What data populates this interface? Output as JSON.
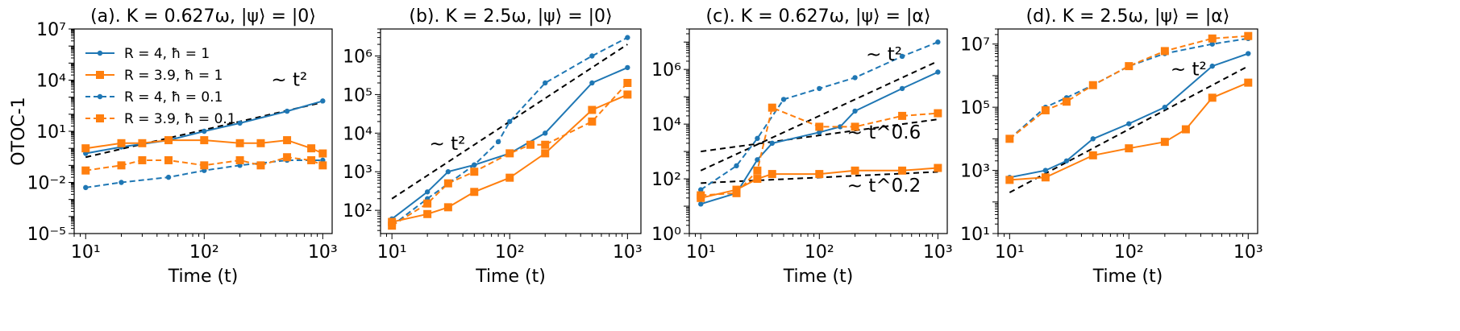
{
  "figure": {
    "ylabel": "OTOC-1",
    "legend": [
      "R = 4, ħ = 1",
      "R = 3.9, ħ = 1",
      "R = 4, ħ = 0.1",
      "R = 3.9, ħ = 0.1"
    ],
    "legend_placement": "upper-left of panel (a)",
    "colors": {
      "blue": "#1f77b4",
      "orange": "#ff7f0e",
      "fit": "#000000"
    }
  },
  "chart_data": [
    {
      "type": "line",
      "title": "(a). K = 0.627ω, |ψ⟩ = |0⟩",
      "xlabel": "Time (t)",
      "ylabel": "OTOC-1",
      "xscale": "log",
      "yscale": "log",
      "xlim": [
        8,
        1200
      ],
      "ylim": [
        1e-05,
        10000000
      ],
      "xticks": [
        10,
        100,
        1000
      ],
      "yticks": [
        1e-05,
        0.01,
        10,
        10000,
        10000000
      ],
      "series": [
        {
          "name": "R = 4, ħ = 1",
          "style": "solid-dot",
          "color": "blue",
          "x": [
            10,
            20,
            50,
            100,
            200,
            500,
            1000
          ],
          "y": [
            0.5,
            1.2,
            3,
            10,
            30,
            150,
            600
          ]
        },
        {
          "name": "R = 3.9, ħ = 1",
          "style": "solid-square",
          "color": "orange",
          "x": [
            10,
            20,
            30,
            50,
            100,
            200,
            300,
            500,
            800,
            1000
          ],
          "y": [
            1,
            2,
            2,
            3,
            3,
            2,
            2,
            3,
            1,
            0.5
          ]
        },
        {
          "name": "R = 4, ħ = 0.1",
          "style": "dashed-dot",
          "color": "blue",
          "x": [
            10,
            20,
            50,
            100,
            200,
            500,
            1000
          ],
          "y": [
            0.005,
            0.01,
            0.02,
            0.05,
            0.1,
            0.2,
            0.2
          ]
        },
        {
          "name": "R = 3.9, ħ = 0.1",
          "style": "dashed-square",
          "color": "orange",
          "x": [
            10,
            20,
            30,
            50,
            100,
            200,
            300,
            500,
            800,
            1000
          ],
          "y": [
            0.05,
            0.1,
            0.2,
            0.2,
            0.1,
            0.2,
            0.1,
            0.3,
            0.2,
            0.1
          ]
        }
      ],
      "fits": [
        {
          "label": "~ t²",
          "x": [
            10,
            1000
          ],
          "y": [
            0.3,
            500
          ]
        }
      ]
    },
    {
      "type": "line",
      "title": "(b). K = 2.5ω, |ψ⟩ = |0⟩",
      "xlabel": "Time (t)",
      "xscale": "log",
      "yscale": "log",
      "xlim": [
        8,
        1300
      ],
      "ylim": [
        25,
        5000000
      ],
      "xticks": [
        10,
        100,
        1000
      ],
      "yticks": [
        100,
        1000,
        10000,
        100000,
        1000000
      ],
      "series": [
        {
          "name": "R = 4, ħ = 1",
          "style": "solid-dot",
          "color": "blue",
          "x": [
            10,
            20,
            30,
            50,
            100,
            200,
            500,
            1000
          ],
          "y": [
            60,
            300,
            1000,
            1500,
            3000,
            10000,
            200000,
            500000
          ]
        },
        {
          "name": "R = 3.9, ħ = 1",
          "style": "solid-square",
          "color": "orange",
          "x": [
            10,
            20,
            30,
            50,
            100,
            200,
            500,
            1000
          ],
          "y": [
            50,
            80,
            120,
            300,
            700,
            3000,
            40000,
            100000
          ]
        },
        {
          "name": "R = 4, ħ = 0.1",
          "style": "dashed-dot",
          "color": "blue",
          "x": [
            10,
            20,
            50,
            80,
            100,
            200,
            500,
            1000
          ],
          "y": [
            40,
            200,
            1500,
            6000,
            20000,
            200000,
            1000000,
            3000000
          ]
        },
        {
          "name": "R = 3.9, ħ = 0.1",
          "style": "dashed-square",
          "color": "orange",
          "x": [
            10,
            20,
            30,
            50,
            100,
            150,
            200,
            500,
            1000
          ],
          "y": [
            40,
            150,
            500,
            1000,
            3000,
            5000,
            5000,
            20000,
            200000
          ]
        }
      ],
      "fits": [
        {
          "label": "~ t²",
          "x": [
            10,
            1000
          ],
          "y": [
            200,
            2000000
          ]
        }
      ]
    },
    {
      "type": "line",
      "title": "(c). K = 0.627ω, |ψ⟩ = |α⟩",
      "xlabel": "Time (t)",
      "xscale": "log",
      "yscale": "log",
      "xlim": [
        8,
        1200
      ],
      "ylim": [
        1,
        30000000
      ],
      "xticks": [
        10,
        100,
        1000
      ],
      "yticks": [
        1,
        100,
        10000,
        1000000
      ],
      "series": [
        {
          "name": "R = 4, ħ = 1",
          "style": "solid-dot",
          "color": "blue",
          "x": [
            10,
            20,
            30,
            40,
            100,
            150,
            200,
            500,
            1000
          ],
          "y": [
            12,
            30,
            500,
            2000,
            5000,
            8000,
            30000,
            200000,
            800000
          ]
        },
        {
          "name": "R = 3.9, ħ = 1",
          "style": "solid-square",
          "color": "orange",
          "x": [
            10,
            20,
            30,
            40,
            100,
            200,
            500,
            1000
          ],
          "y": [
            20,
            40,
            100,
            150,
            150,
            200,
            200,
            250
          ]
        },
        {
          "name": "R = 4, ħ = 0.1",
          "style": "dashed-dot",
          "color": "blue",
          "x": [
            10,
            20,
            30,
            50,
            100,
            200,
            500,
            1000
          ],
          "y": [
            40,
            300,
            3000,
            80000,
            200000,
            500000,
            3000000,
            10000000
          ]
        },
        {
          "name": "R = 3.9, ħ = 0.1",
          "style": "dashed-square",
          "color": "orange",
          "x": [
            10,
            20,
            30,
            40,
            100,
            200,
            500,
            1000
          ],
          "y": [
            25,
            30,
            200,
            40000,
            8000,
            8000,
            20000,
            25000
          ]
        }
      ],
      "fits": [
        {
          "label": "~ t²",
          "x": [
            10,
            1000
          ],
          "y": [
            200,
            2000000
          ]
        },
        {
          "label": "~ t^0.6",
          "x": [
            10,
            1000
          ],
          "y": [
            1000,
            15000
          ]
        },
        {
          "label": "~ t^0.2",
          "x": [
            10,
            1000
          ],
          "y": [
            70,
            180
          ]
        }
      ]
    },
    {
      "type": "line",
      "title": "(d). K = 2.5ω, |ψ⟩ = |α⟩",
      "xlabel": "Time (t)",
      "xscale": "log",
      "yscale": "log",
      "xlim": [
        8,
        1200
      ],
      "ylim": [
        10,
        30000000
      ],
      "xticks": [
        10,
        100,
        1000
      ],
      "yticks": [
        10,
        1000,
        100000,
        10000000
      ],
      "series": [
        {
          "name": "R = 4, ħ = 1",
          "style": "solid-dot",
          "color": "blue",
          "x": [
            10,
            20,
            30,
            50,
            100,
            200,
            500,
            1000
          ],
          "y": [
            600,
            1000,
            2000,
            10000,
            30000,
            100000,
            2000000,
            5000000
          ]
        },
        {
          "name": "R = 3.9, ħ = 1",
          "style": "solid-square",
          "color": "orange",
          "x": [
            10,
            20,
            50,
            100,
            200,
            300,
            500,
            1000
          ],
          "y": [
            500,
            600,
            3000,
            5000,
            8000,
            20000,
            200000,
            600000
          ]
        },
        {
          "name": "R = 4, ħ = 0.1",
          "style": "dashed-dot",
          "color": "blue",
          "x": [
            10,
            20,
            30,
            50,
            100,
            200,
            500,
            1000
          ],
          "y": [
            10000,
            100000,
            200000,
            500000,
            2000000,
            5000000,
            10000000,
            15000000
          ]
        },
        {
          "name": "R = 3.9, ħ = 0.1",
          "style": "dashed-square",
          "color": "orange",
          "x": [
            10,
            20,
            30,
            50,
            100,
            200,
            500,
            1000
          ],
          "y": [
            10000,
            80000,
            150000,
            500000,
            2000000,
            6000000,
            15000000,
            18000000
          ]
        }
      ],
      "fits": [
        {
          "label": "~ t²",
          "x": [
            10,
            1000
          ],
          "y": [
            200,
            2000000
          ]
        }
      ]
    }
  ]
}
